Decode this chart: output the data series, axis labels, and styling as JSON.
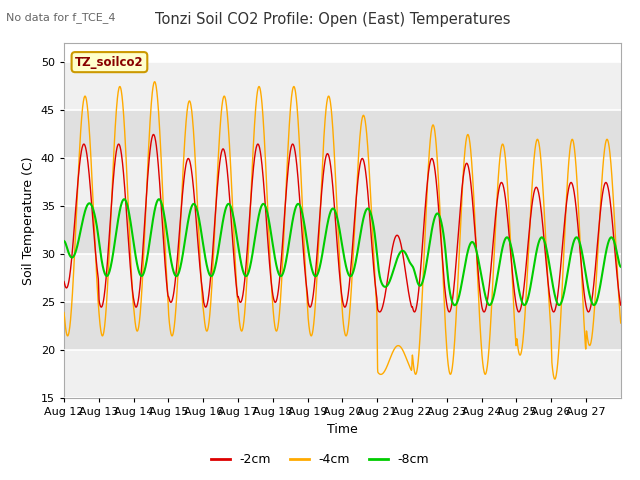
{
  "title": "Tonzi Soil CO2 Profile: Open (East) Temperatures",
  "subtitle": "No data for f_TCE_4",
  "xlabel": "Time",
  "ylabel": "Soil Temperature (C)",
  "ylim": [
    15,
    52
  ],
  "yticks": [
    15,
    20,
    25,
    30,
    35,
    40,
    45,
    50
  ],
  "legend_label": "TZ_soilco2",
  "series_labels": [
    "-2cm",
    "-4cm",
    "-8cm"
  ],
  "series_colors": [
    "#dd0000",
    "#ffaa00",
    "#00cc00"
  ],
  "x_tick_labels": [
    "Aug 12",
    "Aug 13",
    "Aug 14",
    "Aug 15",
    "Aug 16",
    "Aug 17",
    "Aug 18",
    "Aug 19",
    "Aug 20",
    "Aug 21",
    "Aug 22",
    "Aug 23",
    "Aug 24",
    "Aug 25",
    "Aug 26",
    "Aug 27"
  ],
  "background_color": "#ffffff",
  "plot_bg_color": "#ffffff",
  "n_days": 16,
  "samples_per_day": 144,
  "band_colors": [
    "#f0f0f0",
    "#e0e0e0"
  ]
}
